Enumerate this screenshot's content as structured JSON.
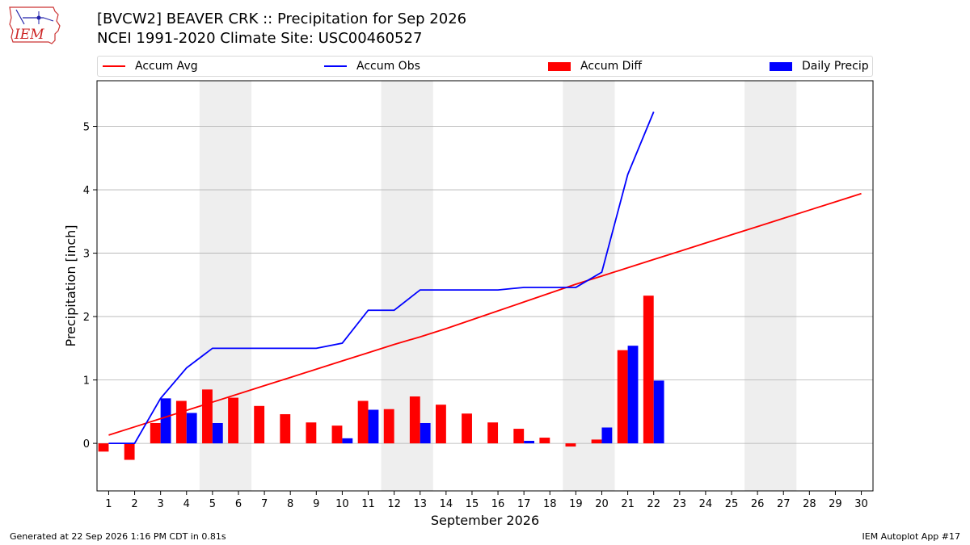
{
  "logo": {
    "text": "IEM"
  },
  "header": {
    "title_line1": "[BVCW2] BEAVER CRK :: Precipitation for Sep 2026",
    "title_line2": "NCEI 1991-2020 Climate Site: USC00460527"
  },
  "legend": {
    "accum_avg": "Accum Avg",
    "accum_obs": "Accum Obs",
    "accum_diff": "Accum Diff",
    "daily_precip": "Daily Precip"
  },
  "footer": {
    "generated": "Generated at 22 Sep 2026 1:16 PM CDT in 0.81s",
    "app": "IEM Autoplot App #17"
  },
  "colors": {
    "accum_avg": "#ff0000",
    "accum_obs": "#0000ff",
    "accum_diff": "#ff0000",
    "daily_precip": "#0000ff",
    "weekend_shade": "#eeeeee",
    "grid": "#b0b0b0"
  },
  "chart_data": {
    "type": "bar",
    "xlabel": "September 2026",
    "ylabel": "Precipitation [inch]",
    "xlim": [
      0.55,
      30.45
    ],
    "ylim": [
      -0.75,
      5.72
    ],
    "yticks": [
      0,
      1,
      2,
      3,
      4,
      5
    ],
    "days": [
      1,
      2,
      3,
      4,
      5,
      6,
      7,
      8,
      9,
      10,
      11,
      12,
      13,
      14,
      15,
      16,
      17,
      18,
      19,
      20,
      21,
      22,
      23,
      24,
      25,
      26,
      27,
      28,
      29,
      30
    ],
    "weekend_shading": [
      [
        5,
        6
      ],
      [
        12,
        13
      ],
      [
        19,
        20
      ],
      [
        26,
        27
      ]
    ],
    "grid": "horizontal",
    "legend_position": "top",
    "series": [
      {
        "name": "Accum Avg",
        "kind": "line",
        "values": [
          0.13,
          0.26,
          0.39,
          0.52,
          0.65,
          0.78,
          0.91,
          1.04,
          1.17,
          1.3,
          1.43,
          1.56,
          1.68,
          1.81,
          1.95,
          2.09,
          2.23,
          2.37,
          2.51,
          2.64,
          2.77,
          2.9,
          3.03,
          3.16,
          3.29,
          3.42,
          3.55,
          3.68,
          3.81,
          3.94
        ]
      },
      {
        "name": "Accum Obs",
        "kind": "line",
        "values": [
          0.0,
          0.0,
          0.71,
          1.19,
          1.5,
          1.5,
          1.5,
          1.5,
          1.5,
          1.58,
          2.1,
          2.1,
          2.42,
          2.42,
          2.42,
          2.42,
          2.46,
          2.46,
          2.46,
          2.7,
          4.24,
          5.23
        ]
      },
      {
        "name": "Accum Diff",
        "kind": "bar",
        "values": [
          -0.13,
          -0.26,
          0.32,
          0.67,
          0.85,
          0.72,
          0.59,
          0.46,
          0.33,
          0.28,
          0.67,
          0.54,
          0.74,
          0.61,
          0.47,
          0.33,
          0.23,
          0.09,
          -0.05,
          0.06,
          1.47,
          2.33
        ]
      },
      {
        "name": "Daily Precip",
        "kind": "bar",
        "values": [
          0.0,
          0.0,
          0.71,
          0.48,
          0.32,
          0.0,
          0.0,
          0.0,
          0.0,
          0.08,
          0.53,
          0.0,
          0.32,
          0.0,
          0.0,
          0.0,
          0.04,
          0.0,
          0.0,
          0.25,
          1.54,
          0.99
        ]
      }
    ]
  }
}
